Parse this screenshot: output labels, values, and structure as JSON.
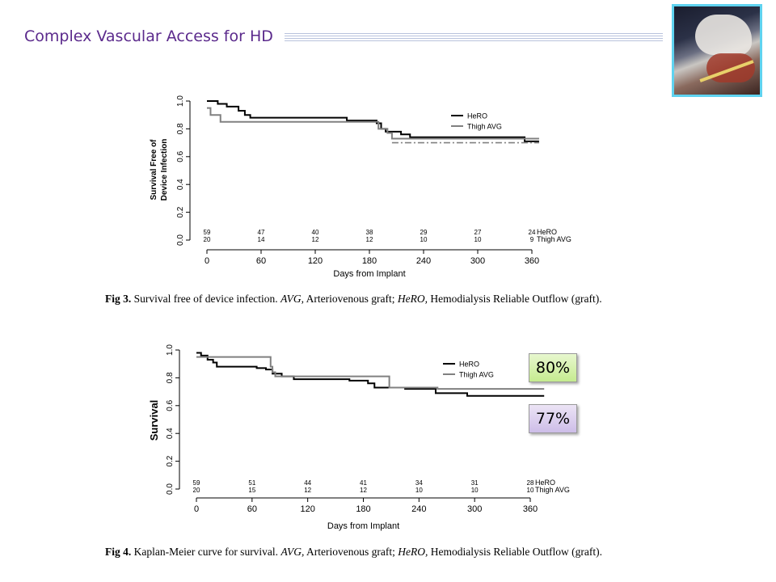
{
  "slide": {
    "title": "Complex Vascular Access for HD",
    "photo_icon": "surgery-photo"
  },
  "badges": {
    "hero_survival": "80%",
    "avg_survival": "77%"
  },
  "captions": {
    "fig3": {
      "label": "Fig 3.",
      "lead": "Survival free of device infection.",
      "abbr1": "AVG,",
      "def1": "Arteriovenous graft;",
      "abbr2": "HeRO,",
      "def2": "Hemodialysis Reliable Outflow (graft)."
    },
    "fig4": {
      "label": "Fig 4.",
      "lead": "Kaplan-Meier curve for survival.",
      "abbr1": "AVG,",
      "def1": "Arteriovenous graft;",
      "abbr2": "HeRO,",
      "def2": "Hemodialysis Reliable Outflow (graft)."
    }
  },
  "chart_data": [
    {
      "type": "line",
      "subtype": "kaplan-meier-step",
      "ylabel": [
        "Survival Free of",
        "Device Infection"
      ],
      "xlabel": "Days from Implant",
      "xlim": [
        0,
        370
      ],
      "ylim": [
        0,
        1.0
      ],
      "xticks": [
        0,
        60,
        120,
        180,
        240,
        300,
        360
      ],
      "yticks": [
        "0.0",
        "0.2",
        "0.4",
        "0.6",
        "0.8",
        "1.0"
      ],
      "legend": {
        "placement": "top-right",
        "entries": [
          "HeRO",
          "Thigh AVG"
        ]
      },
      "series": [
        {
          "name": "HeRO",
          "color": "#000000",
          "dash": "solid",
          "width": 2,
          "steps": [
            [
              0,
              1.0
            ],
            [
              12,
              0.98
            ],
            [
              22,
              0.96
            ],
            [
              35,
              0.93
            ],
            [
              42,
              0.9
            ],
            [
              48,
              0.88
            ],
            [
              100,
              0.88
            ],
            [
              155,
              0.86
            ],
            [
              188,
              0.84
            ],
            [
              193,
              0.8
            ],
            [
              198,
              0.78
            ],
            [
              215,
              0.76
            ],
            [
              225,
              0.74
            ],
            [
              350,
              0.74
            ],
            [
              352,
              0.71
            ],
            [
              368,
              0.71
            ]
          ]
        },
        {
          "name": "Thigh AVG",
          "color": "#808080",
          "dash": "solid",
          "width": 2,
          "steps": [
            [
              0,
              0.95
            ],
            [
              4,
              0.9
            ],
            [
              15,
              0.85
            ],
            [
              188,
              0.85
            ],
            [
              190,
              0.8
            ],
            [
              200,
              0.77
            ],
            [
              205,
              0.73
            ],
            [
              368,
              0.73
            ]
          ]
        },
        {
          "name": "Thigh AVG (tail)",
          "color": "#808080",
          "dash": "dashdot",
          "width": 1.6,
          "steps": [
            [
              205,
              0.7
            ],
            [
              368,
              0.7
            ]
          ]
        }
      ],
      "risk_table": {
        "x": [
          0,
          60,
          120,
          180,
          240,
          300,
          360
        ],
        "rows": [
          {
            "name": "HeRO",
            "values": [
              "59",
              "47",
              "40",
              "38",
              "29",
              "27",
              "24"
            ]
          },
          {
            "name": "Thigh AVG",
            "values": [
              "20",
              "14",
              "12",
              "12",
              "10",
              "10",
              "9"
            ]
          }
        ]
      }
    },
    {
      "type": "line",
      "subtype": "kaplan-meier-step",
      "ylabel": [
        "Survival"
      ],
      "xlabel": "Days from Implant",
      "xlim": [
        0,
        370
      ],
      "ylim": [
        0,
        1.0
      ],
      "xticks": [
        0,
        60,
        120,
        180,
        240,
        300,
        360
      ],
      "yticks": [
        "0.0",
        "0.2",
        "0.4",
        "0.6",
        "0.8",
        "1.0"
      ],
      "legend": {
        "placement": "top-right",
        "entries": [
          "HeRO",
          "Thigh AVG"
        ]
      },
      "series": [
        {
          "name": "HeRO",
          "color": "#000000",
          "dash": "solid",
          "width": 2,
          "steps": [
            [
              0,
              0.98
            ],
            [
              5,
              0.96
            ],
            [
              12,
              0.93
            ],
            [
              18,
              0.91
            ],
            [
              22,
              0.88
            ],
            [
              60,
              0.88
            ],
            [
              65,
              0.87
            ],
            [
              75,
              0.86
            ],
            [
              82,
              0.83
            ],
            [
              92,
              0.81
            ],
            [
              105,
              0.79
            ],
            [
              160,
              0.79
            ],
            [
              165,
              0.78
            ],
            [
              185,
              0.76
            ],
            [
              192,
              0.73
            ],
            [
              225,
              0.72
            ],
            [
              258,
              0.69
            ],
            [
              292,
              0.67
            ],
            [
              375,
              0.67
            ]
          ]
        },
        {
          "name": "Thigh AVG",
          "color": "#808080",
          "dash": "solid",
          "width": 2,
          "steps": [
            [
              0,
              0.95
            ],
            [
              78,
              0.95
            ],
            [
              80,
              0.88
            ],
            [
              82,
              0.84
            ],
            [
              85,
              0.81
            ],
            [
              205,
              0.81
            ],
            [
              208,
              0.73
            ],
            [
              260,
              0.73
            ],
            [
              260,
              0.72
            ],
            [
              375,
              0.72
            ]
          ]
        }
      ],
      "risk_table": {
        "x": [
          0,
          60,
          120,
          180,
          240,
          300,
          360
        ],
        "rows": [
          {
            "name": "HeRO",
            "values": [
              "59",
              "51",
              "44",
              "41",
              "34",
              "31",
              "28"
            ]
          },
          {
            "name": "Thigh AVG",
            "values": [
              "20",
              "15",
              "12",
              "12",
              "10",
              "10",
              "10"
            ]
          }
        ]
      }
    }
  ]
}
